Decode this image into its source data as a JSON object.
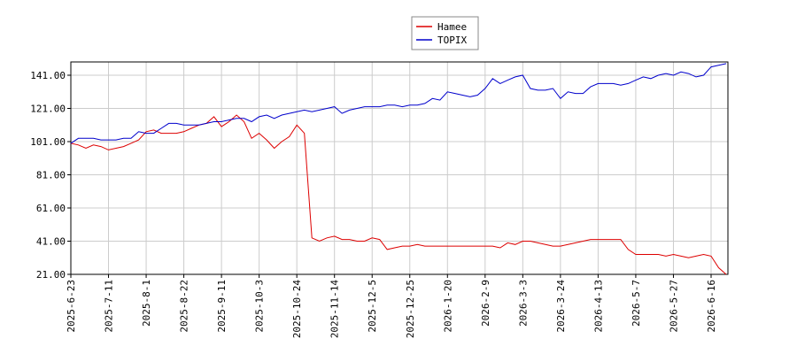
{
  "chart_data": {
    "type": "line",
    "categories": [
      "2025-6-23",
      null,
      null,
      null,
      null,
      "2025-7-11",
      null,
      null,
      null,
      null,
      "2025-8-1",
      null,
      null,
      null,
      null,
      "2025-8-22",
      null,
      null,
      null,
      null,
      "2025-9-11",
      null,
      null,
      null,
      null,
      "2025-10-3",
      null,
      null,
      null,
      null,
      "2025-10-24",
      null,
      null,
      null,
      null,
      "2025-11-14",
      null,
      null,
      null,
      null,
      "2025-12-5",
      null,
      null,
      null,
      null,
      "2025-12-25",
      null,
      null,
      null,
      null,
      "2026-1-20",
      null,
      null,
      null,
      null,
      "2026-2-9",
      null,
      null,
      null,
      null,
      "2026-3-3",
      null,
      null,
      null,
      null,
      "2026-3-24",
      null,
      null,
      null,
      null,
      "2026-4-13",
      null,
      null,
      null,
      null,
      "2026-5-7",
      null,
      null,
      null,
      null,
      "2026-5-27",
      null,
      null,
      null,
      null,
      "2026-6-16",
      null,
      null
    ],
    "series": [
      {
        "name": "Hamee",
        "color": "#dd0000",
        "values": [
          100,
          99,
          97,
          99,
          98,
          96,
          97,
          98,
          100,
          102,
          107,
          108,
          106,
          106,
          106,
          107,
          109,
          111,
          112,
          116,
          110,
          113,
          117,
          113,
          103,
          106,
          102,
          97,
          101,
          104,
          111,
          106,
          43,
          41,
          43,
          44,
          42,
          42,
          41,
          41,
          43,
          42,
          36,
          37,
          38,
          38,
          39,
          38,
          38,
          38,
          38,
          38,
          38,
          38,
          38,
          38,
          38,
          37,
          40,
          39,
          41,
          41,
          40,
          39,
          38,
          38,
          39,
          40,
          41,
          42,
          42,
          42,
          42,
          42,
          36,
          33,
          33,
          33,
          33,
          32,
          33,
          32,
          31,
          32,
          33,
          32,
          25,
          21
        ]
      },
      {
        "name": "TOPIX",
        "color": "#0000cc",
        "values": [
          100,
          103,
          103,
          103,
          102,
          102,
          102,
          103,
          103,
          107,
          106,
          106,
          109,
          112,
          112,
          111,
          111,
          111,
          112,
          113,
          113,
          114,
          115,
          115,
          113,
          116,
          117,
          115,
          117,
          118,
          119,
          120,
          119,
          120,
          121,
          122,
          118,
          120,
          121,
          122,
          122,
          122,
          123,
          123,
          122,
          123,
          123,
          124,
          127,
          126,
          131,
          130,
          129,
          128,
          129,
          133,
          139,
          136,
          138,
          140,
          141,
          133,
          132,
          132,
          133,
          127,
          131,
          130,
          130,
          134,
          136,
          136,
          136,
          135,
          136,
          138,
          140,
          139,
          141,
          142,
          141,
          143,
          142,
          140,
          141,
          146,
          147,
          148
        ]
      }
    ],
    "ylim": [
      21,
      149
    ],
    "yticks": [
      {
        "value": 21,
        "label": "21.00"
      },
      {
        "value": 41,
        "label": "41.00"
      },
      {
        "value": 61,
        "label": "61.00"
      },
      {
        "value": 81,
        "label": "81.00"
      },
      {
        "value": 101,
        "label": "101.00"
      },
      {
        "value": 121,
        "label": "121.00"
      },
      {
        "value": 141,
        "label": "141.00"
      }
    ],
    "grid": true
  }
}
